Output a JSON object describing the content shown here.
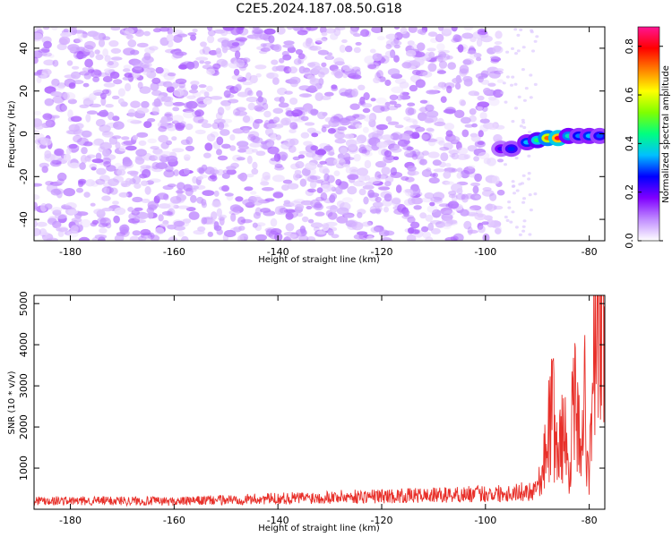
{
  "title": "C2E5.2024.187.08.50.G18",
  "chart_data": [
    {
      "type": "heatmap",
      "xlabel": "Height of straight line (km)",
      "ylabel": "Frequency (Hz)",
      "xlim": [
        -187,
        -77
      ],
      "ylim": [
        -50,
        50
      ],
      "x_ticks": [
        -180,
        -160,
        -140,
        -120,
        -100,
        -80
      ],
      "y_ticks": [
        -40,
        -20,
        0,
        20,
        40
      ],
      "colorbar": {
        "label": "Normalized spectral amplitude",
        "range": [
          0,
          0.88
        ],
        "ticks": [
          0.0,
          0.2,
          0.4,
          0.6,
          0.8
        ],
        "colormap": [
          "#ffffff",
          "#c08cff",
          "#8000ff",
          "#0000ff",
          "#00c0ff",
          "#00ff80",
          "#80ff00",
          "#ffff00",
          "#ff8000",
          "#ff0000",
          "#ff1493"
        ]
      },
      "noise_region": {
        "x_from": -187,
        "x_to": -97,
        "typical_amplitude": 0.1
      },
      "signal_band": [
        {
          "x": -97,
          "freq": -7,
          "amplitude": 0.22
        },
        {
          "x": -95,
          "freq": -7,
          "amplitude": 0.28
        },
        {
          "x": -92,
          "freq": -4,
          "amplitude": 0.35
        },
        {
          "x": -90,
          "freq": -3,
          "amplitude": 0.45
        },
        {
          "x": -88,
          "freq": -2,
          "amplitude": 0.72
        },
        {
          "x": -86,
          "freq": -2,
          "amplitude": 0.82
        },
        {
          "x": -84,
          "freq": -1,
          "amplitude": 0.4
        },
        {
          "x": -82,
          "freq": -1,
          "amplitude": 0.32
        },
        {
          "x": -80,
          "freq": -1,
          "amplitude": 0.35
        },
        {
          "x": -78,
          "freq": -1,
          "amplitude": 0.3
        }
      ]
    },
    {
      "type": "line",
      "xlabel": "Height of straight line (km)",
      "ylabel": "SNR (10 * v/v)",
      "xlim": [
        -187,
        -77
      ],
      "ylim": [
        0,
        5200
      ],
      "x_ticks": [
        -180,
        -160,
        -140,
        -120,
        -100,
        -80
      ],
      "y_ticks": [
        1000,
        2000,
        3000,
        4000,
        5000
      ],
      "series": [
        {
          "color": "#e8302a",
          "x": [
            -187,
            -180,
            -170,
            -160,
            -150,
            -140,
            -130,
            -120,
            -110,
            -100,
            -95,
            -91,
            -89,
            -88,
            -87,
            -86,
            -85,
            -84,
            -83,
            -82,
            -81,
            -80,
            -79.5,
            -79,
            -78.5,
            -78,
            -77.5
          ],
          "y": [
            220,
            200,
            210,
            190,
            230,
            260,
            300,
            320,
            340,
            380,
            400,
            450,
            800,
            1900,
            2350,
            1200,
            2100,
            900,
            2600,
            1700,
            2800,
            800,
            2100,
            4300,
            3800,
            5150,
            4600
          ]
        }
      ]
    }
  ]
}
